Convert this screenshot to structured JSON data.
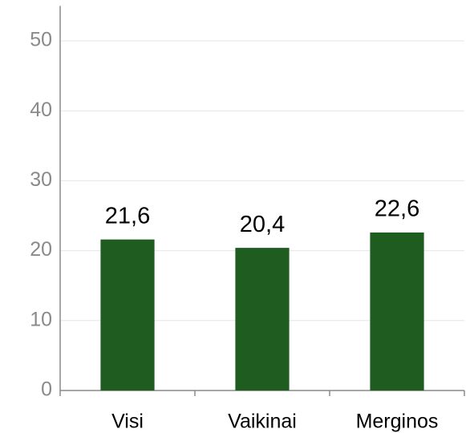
{
  "chart_data": {
    "type": "bar",
    "categories": [
      "Visi",
      "Vaikinai",
      "Merginos"
    ],
    "values": [
      21.6,
      20.4,
      22.6
    ],
    "value_labels": [
      "21,6",
      "20,4",
      "22,6"
    ],
    "color": "#1e5c20",
    "ylim": [
      0,
      55
    ],
    "yticks": [
      0,
      10,
      20,
      30,
      40,
      50
    ],
    "grid": true
  }
}
